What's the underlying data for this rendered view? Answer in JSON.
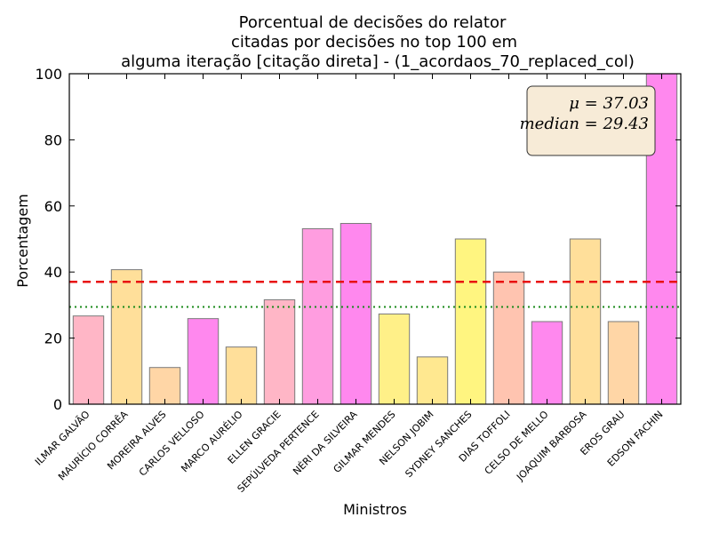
{
  "chart_data": {
    "type": "bar",
    "title_lines": [
      "Porcentual de decisões do relator",
      "citadas por decisões no top 100 em",
      "alguma iteração [citação direta] - (1_acordaos_70_replaced_col)"
    ],
    "xlabel": "Ministros",
    "ylabel": "Porcentagem",
    "ylim": [
      0,
      100
    ],
    "yticks": [
      "0",
      "20",
      "40",
      "60",
      "80",
      "100"
    ],
    "categories": [
      "ILMAR GALVÃO",
      "MAURÍCIO CORRÊA",
      "MOREIRA ALVES",
      "CARLOS VELLOSO",
      "MARCO AURÉLIO",
      "ELLEN GRACIE",
      "SEPÚLVEDA PERTENCE",
      "NÉRI DA SILVEIRA",
      "GILMAR MENDES",
      "NELSON JOBIM",
      "SYDNEY SANCHES",
      "DIAS TOFFOLI",
      "CELSO DE MELLO",
      "JOAQUIM BARBOSA",
      "EROS GRAU",
      "EDSON FACHIN"
    ],
    "values": [
      26.7,
      40.7,
      11.1,
      25.9,
      17.3,
      31.6,
      53.1,
      54.7,
      27.3,
      14.3,
      50.0,
      40.0,
      25.0,
      50.0,
      25.0,
      100.0
    ],
    "bar_colors": [
      "#ffb6c6",
      "#ffdf9a",
      "#ffd6a6",
      "#ff88ee",
      "#ffdf9a",
      "#ffb6c6",
      "#ff9de0",
      "#ff88ee",
      "#fff088",
      "#ffe890",
      "#fff580",
      "#ffc4b0",
      "#ff88ee",
      "#ffdf9a",
      "#ffd6a6",
      "#ff88ee"
    ],
    "mean": 37.03,
    "median": 29.43,
    "mean_color": "#e81010",
    "median_color": "#1a8a1a",
    "stats_box": {
      "mean_text": "μ = 37.03",
      "median_text": "median = 29.43",
      "background": "#f7ebd7",
      "position": "top-right"
    },
    "grid": false
  }
}
